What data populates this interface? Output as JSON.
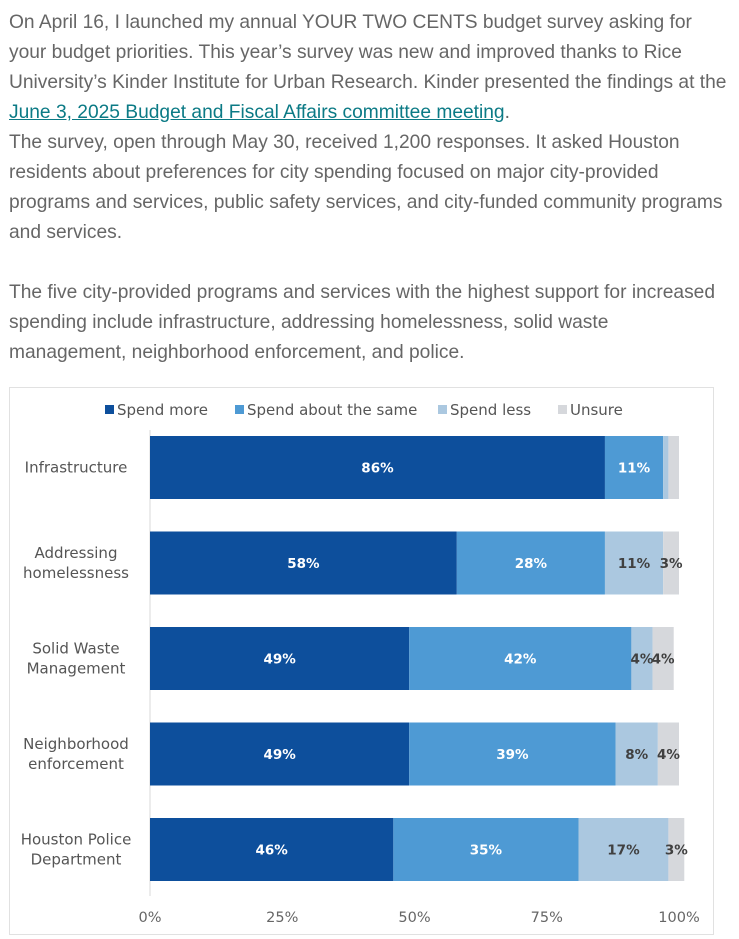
{
  "article": {
    "paragraph1": {
      "before_link": "On April 16, I launched my annual YOUR TWO CENTS budget survey asking for your budget priorities. This year’s survey was new and improved thanks to Rice University’s Kinder Institute for Urban Research. Kinder presented the findings at the ",
      "link_text": "June 3, 2025 Budget and Fiscal Affairs committee meeting",
      "after_link": ".",
      "continuation": "The survey, open through May 30, received 1,200 responses. It asked Houston residents about preferences for city spending focused on major city-provided programs and services, public safety services, and city-funded community programs and services."
    },
    "paragraph2": "The five city-provided programs and services with the highest support for increased spending include infrastructure, addressing homelessness, solid waste management, neighborhood enforcement, and police.",
    "link_color": "#0b7a85",
    "text_color": "#666666"
  },
  "chart_data": {
    "type": "bar",
    "orientation": "horizontal",
    "stacked": true,
    "title": "",
    "xlabel": "",
    "ylabel": "",
    "xlim": [
      0,
      100
    ],
    "x_ticks": [
      "0%",
      "25%",
      "50%",
      "75%",
      "100%"
    ],
    "x_tick_values": [
      0,
      25,
      50,
      75,
      100
    ],
    "grid": false,
    "legend_position": "top",
    "categories": [
      [
        "Infrastructure"
      ],
      [
        "Addressing",
        "homelessness"
      ],
      [
        "Solid Waste",
        "Management"
      ],
      [
        "Neighborhood",
        "enforcement"
      ],
      [
        "Houston Police",
        "Department"
      ]
    ],
    "series": [
      {
        "name": "Spend more",
        "color": "#0d4f9c",
        "label_color": "#ffffff",
        "values": [
          86,
          58,
          49,
          49,
          46
        ],
        "labels": [
          "86%",
          "58%",
          "49%",
          "49%",
          "46%"
        ]
      },
      {
        "name": "Spend about the same",
        "color": "#4e9ad4",
        "label_color": "#ffffff",
        "values": [
          11,
          28,
          42,
          39,
          35
        ],
        "labels": [
          "11%",
          "28%",
          "42%",
          "39%",
          "35%"
        ]
      },
      {
        "name": "Spend less",
        "color": "#abc8e0",
        "label_color": "#404040",
        "values": [
          1,
          11,
          4,
          8,
          17
        ],
        "labels": [
          "",
          "11%",
          "4%",
          "8%",
          "17%"
        ]
      },
      {
        "name": "Unsure",
        "color": "#d6d8dc",
        "label_color": "#404040",
        "values": [
          2,
          3,
          4,
          4,
          3
        ],
        "labels": [
          "",
          "3%",
          "4%",
          "4%",
          "3%"
        ]
      }
    ]
  }
}
